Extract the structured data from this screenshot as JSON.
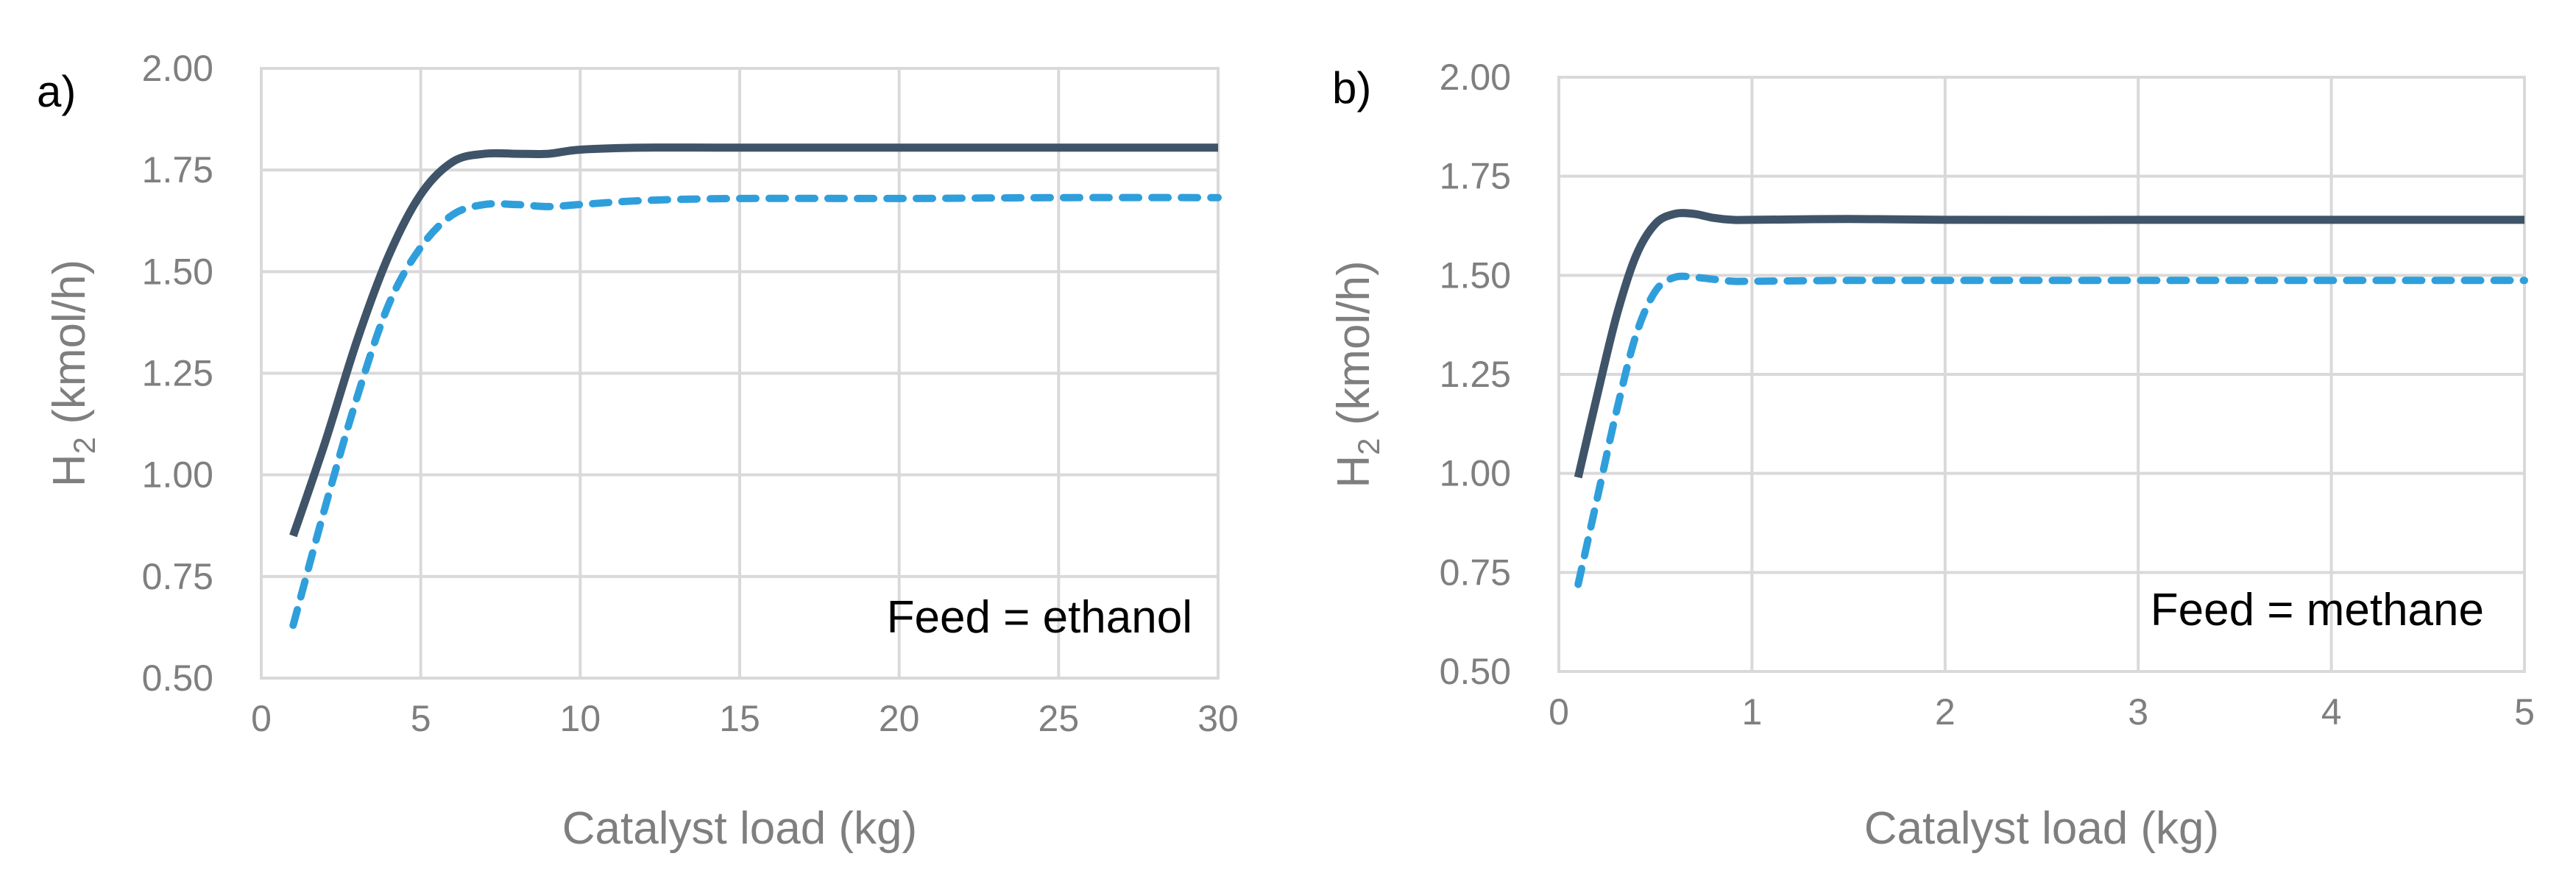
{
  "colors": {
    "solid": "#3f5468",
    "dashed": "#2f9fdc",
    "text": "#7f7f7f",
    "grid": "#d9d9d9"
  },
  "chart_data": [
    {
      "type": "line",
      "panel_label": "a)",
      "xlabel": "Catalyst load (kg)",
      "ylabel_main": "H",
      "ylabel_sub": "2",
      "ylabel_rest": " (kmol/h)",
      "annotation": "Feed = ethanol",
      "xlim": [
        0,
        30
      ],
      "ylim": [
        0.5,
        2.0
      ],
      "xticks": [
        0,
        5,
        10,
        15,
        20,
        25,
        30
      ],
      "xtick_labels": [
        "0",
        "5",
        "10",
        "15",
        "20",
        "25",
        "30"
      ],
      "yticks": [
        0.5,
        0.75,
        1.0,
        1.25,
        1.5,
        1.75,
        2.0
      ],
      "ytick_labels": [
        "0.50",
        "0.75",
        "1.00",
        "1.25",
        "1.50",
        "1.75",
        "2.00"
      ],
      "grid": true,
      "series": [
        {
          "name": "solid",
          "style": "solid",
          "x": [
            1,
            2,
            3,
            4,
            5,
            6,
            7,
            8,
            9,
            10,
            12,
            15,
            20,
            25,
            30
          ],
          "y": [
            0.85,
            1.08,
            1.33,
            1.54,
            1.69,
            1.77,
            1.79,
            1.79,
            1.79,
            1.8,
            1.805,
            1.805,
            1.805,
            1.805,
            1.805
          ]
        },
        {
          "name": "dashed",
          "style": "dashed",
          "x": [
            1,
            2,
            3,
            4,
            5,
            6,
            7,
            8,
            9,
            10,
            12,
            15,
            20,
            25,
            30
          ],
          "y": [
            0.63,
            0.92,
            1.19,
            1.42,
            1.56,
            1.64,
            1.665,
            1.665,
            1.66,
            1.665,
            1.675,
            1.68,
            1.68,
            1.682,
            1.682
          ]
        }
      ]
    },
    {
      "type": "line",
      "panel_label": "b)",
      "xlabel": "Catalyst load (kg)",
      "ylabel_main": "H",
      "ylabel_sub": "2",
      "ylabel_rest": " (kmol/h)",
      "annotation": "Feed = methane",
      "xlim": [
        0,
        5
      ],
      "ylim": [
        0.5,
        2.0
      ],
      "xticks": [
        0,
        1,
        2,
        3,
        4,
        5
      ],
      "xtick_labels": [
        "0",
        "1",
        "2",
        "3",
        "4",
        "5"
      ],
      "yticks": [
        0.5,
        0.75,
        1.0,
        1.25,
        1.5,
        1.75,
        2.0
      ],
      "ytick_labels": [
        "0.50",
        "0.75",
        "1.00",
        "1.25",
        "1.50",
        "1.75",
        "2.00"
      ],
      "grid": true,
      "series": [
        {
          "name": "solid",
          "style": "solid",
          "x": [
            0.1,
            0.2,
            0.3,
            0.4,
            0.5,
            0.6,
            0.7,
            0.8,
            0.9,
            1.0,
            1.5,
            2,
            3,
            4,
            5
          ],
          "y": [
            0.99,
            1.2,
            1.4,
            1.55,
            1.63,
            1.655,
            1.655,
            1.645,
            1.64,
            1.64,
            1.642,
            1.64,
            1.64,
            1.64,
            1.64
          ]
        },
        {
          "name": "dashed",
          "style": "dashed",
          "x": [
            0.1,
            0.2,
            0.3,
            0.4,
            0.5,
            0.6,
            0.7,
            0.8,
            0.9,
            1.0,
            1.5,
            2,
            3,
            4,
            5
          ],
          "y": [
            0.72,
            0.94,
            1.16,
            1.35,
            1.46,
            1.495,
            1.495,
            1.49,
            1.485,
            1.485,
            1.487,
            1.487,
            1.487,
            1.487,
            1.487
          ]
        }
      ]
    }
  ]
}
